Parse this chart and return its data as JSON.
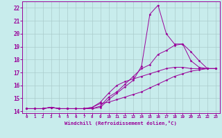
{
  "xlabel": "Windchill (Refroidissement éolien,°C)",
  "bg_color": "#c8ecec",
  "line_color": "#990099",
  "grid_color": "#aacccc",
  "xlim": [
    -0.5,
    23.5
  ],
  "ylim": [
    13.85,
    22.5
  ],
  "yticks": [
    14,
    15,
    16,
    17,
    18,
    19,
    20,
    21,
    22
  ],
  "xticks": [
    0,
    1,
    2,
    3,
    4,
    5,
    6,
    7,
    8,
    9,
    10,
    11,
    12,
    13,
    14,
    15,
    16,
    17,
    18,
    19,
    20,
    21,
    22,
    23
  ],
  "curves": [
    {
      "x": [
        0,
        1,
        2,
        3,
        4,
        5,
        6,
        7,
        8,
        9,
        10,
        11,
        12,
        13,
        14,
        15,
        16,
        17,
        18,
        19,
        20,
        21,
        22,
        23
      ],
      "y": [
        14.2,
        14.2,
        14.2,
        14.3,
        14.2,
        14.2,
        14.2,
        14.2,
        14.2,
        14.3,
        14.9,
        15.4,
        15.9,
        16.4,
        17.5,
        21.5,
        22.2,
        20.0,
        19.2,
        19.2,
        17.9,
        17.4,
        17.3,
        17.3
      ]
    },
    {
      "x": [
        0,
        1,
        2,
        3,
        4,
        5,
        6,
        7,
        8,
        9,
        10,
        11,
        12,
        13,
        14,
        15,
        16,
        17,
        18,
        19,
        20,
        21,
        22,
        23
      ],
      "y": [
        14.2,
        14.2,
        14.2,
        14.3,
        14.2,
        14.2,
        14.2,
        14.2,
        14.2,
        14.4,
        15.1,
        15.5,
        16.1,
        16.7,
        17.3,
        17.6,
        18.4,
        18.7,
        19.1,
        19.2,
        18.6,
        17.9,
        17.3,
        17.3
      ]
    },
    {
      "x": [
        0,
        1,
        2,
        3,
        4,
        5,
        6,
        7,
        8,
        9,
        10,
        11,
        12,
        13,
        14,
        15,
        16,
        17,
        18,
        19,
        20,
        21,
        22,
        23
      ],
      "y": [
        14.2,
        14.2,
        14.2,
        14.3,
        14.2,
        14.2,
        14.2,
        14.2,
        14.3,
        14.6,
        14.7,
        14.9,
        15.1,
        15.3,
        15.5,
        15.8,
        16.1,
        16.4,
        16.7,
        16.9,
        17.1,
        17.2,
        17.3,
        17.3
      ]
    },
    {
      "x": [
        0,
        1,
        2,
        3,
        4,
        5,
        6,
        7,
        8,
        9,
        10,
        11,
        12,
        13,
        14,
        15,
        16,
        17,
        18,
        19,
        20,
        21,
        22,
        23
      ],
      "y": [
        14.2,
        14.2,
        14.2,
        14.3,
        14.2,
        14.2,
        14.2,
        14.2,
        14.3,
        14.7,
        15.4,
        16.0,
        16.3,
        16.5,
        16.7,
        16.9,
        17.1,
        17.3,
        17.4,
        17.4,
        17.3,
        17.3,
        17.3,
        17.3
      ]
    }
  ]
}
